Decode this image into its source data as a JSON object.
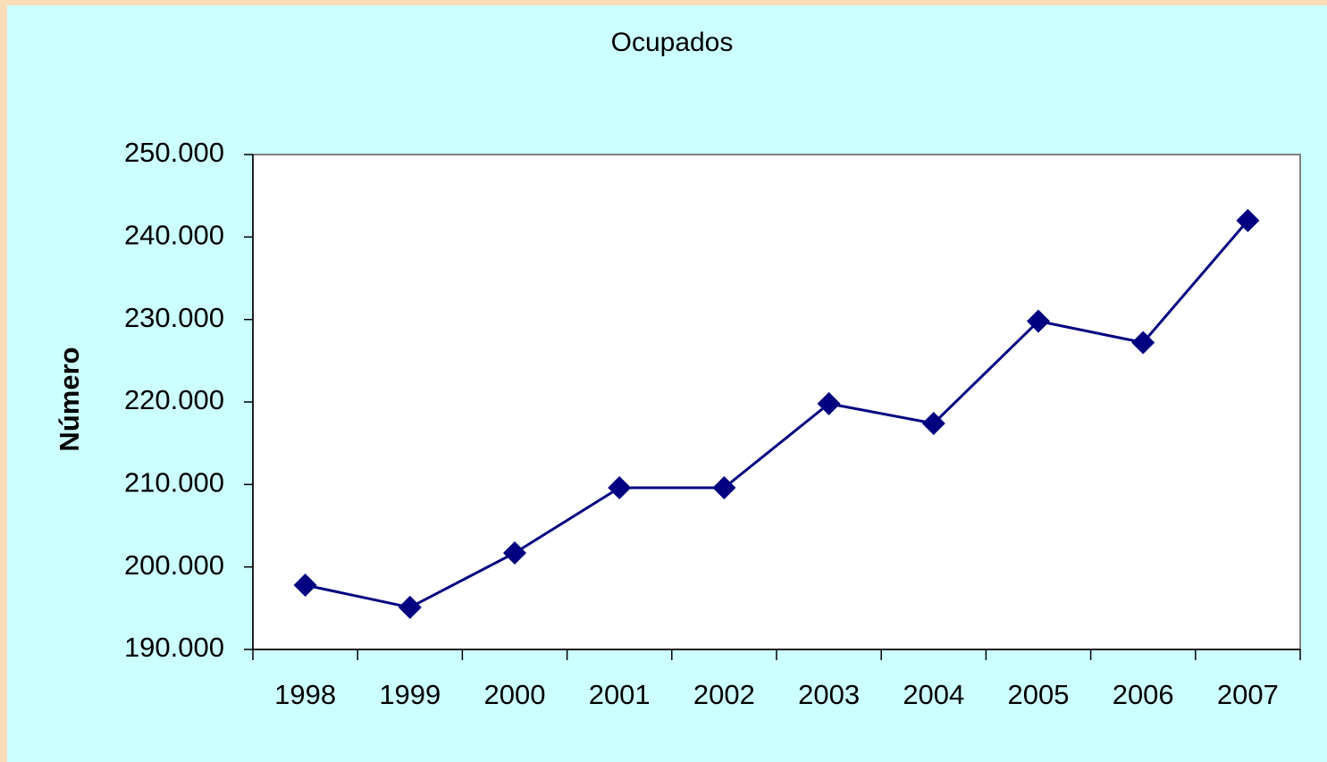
{
  "chart_data": {
    "type": "line",
    "title": "Ocupados",
    "y_label": "Número",
    "categories": [
      "1998",
      "1999",
      "2000",
      "2001",
      "2002",
      "2003",
      "2004",
      "2005",
      "2006",
      "2007"
    ],
    "series": [
      {
        "color": "#000080",
        "values": [
          197800,
          195100,
          201700,
          209600,
          209600,
          219800,
          217400,
          229800,
          227200,
          242000
        ]
      }
    ],
    "ylim": [
      190000,
      250000
    ],
    "yticks": [
      {
        "value": 190000,
        "label": "190.000"
      },
      {
        "value": 200000,
        "label": "200.000"
      },
      {
        "value": 210000,
        "label": "210.000"
      },
      {
        "value": 220000,
        "label": "220.000"
      },
      {
        "value": 230000,
        "label": "230.000"
      },
      {
        "value": 240000,
        "label": "240.000"
      },
      {
        "value": 250000,
        "label": "250.000"
      }
    ],
    "grid": false
  }
}
